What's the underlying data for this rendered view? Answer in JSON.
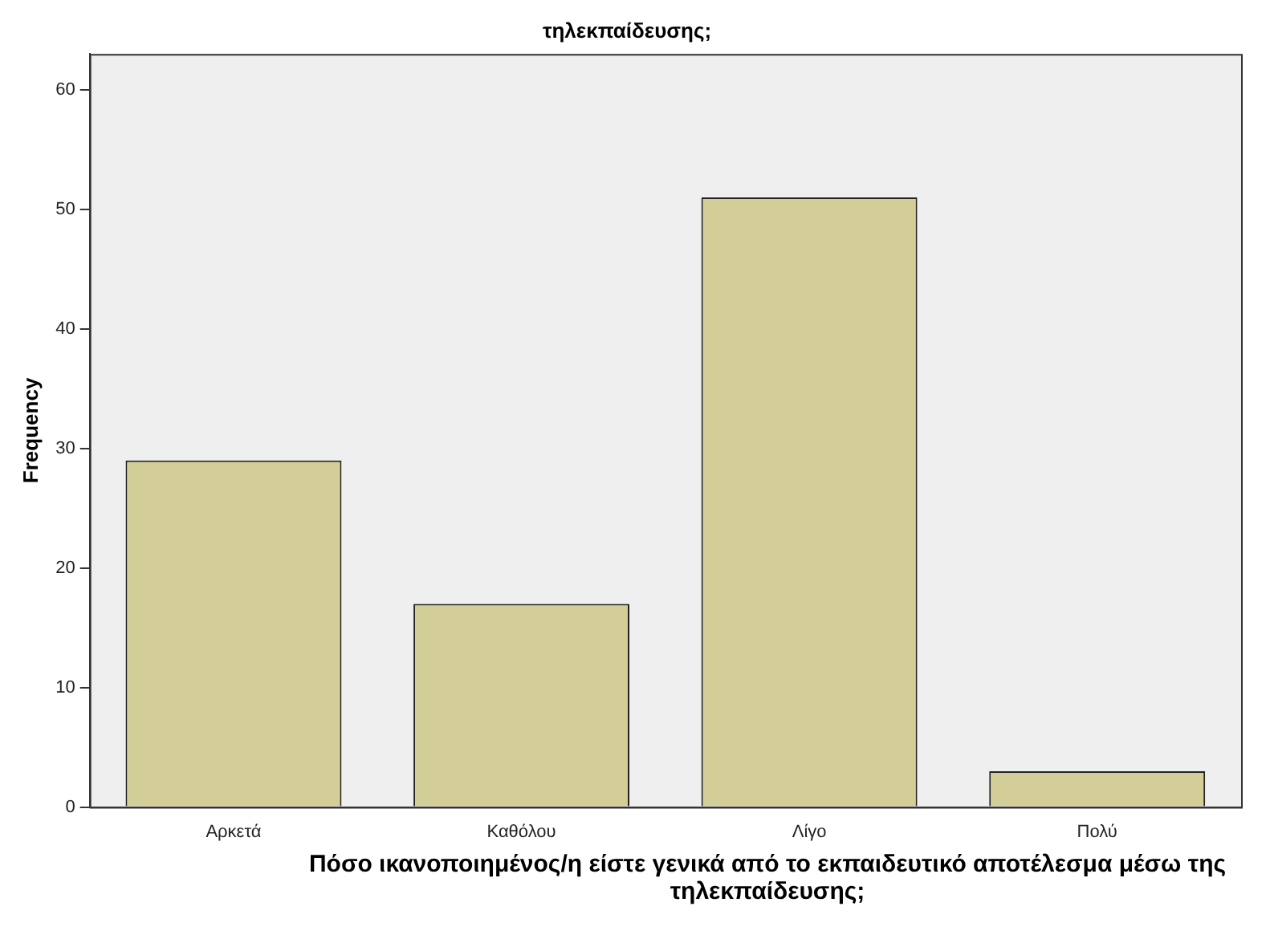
{
  "chart_data": {
    "type": "bar",
    "title": "τηλεκπαίδευσης;",
    "xlabel": "Πόσο ικανοποιημένος/η είστε γενικά από το εκπαιδευτικό αποτέλεσμα μέσω της τηλεκπαίδευσης;",
    "ylabel": "Frequency",
    "categories": [
      "Αρκετά",
      "Καθόλου",
      "Λίγο",
      "Πολύ"
    ],
    "values": [
      29,
      17,
      51,
      3
    ],
    "color": "#d3ce97",
    "ylim": [
      0,
      63
    ],
    "yticks": [
      0,
      10,
      20,
      30,
      40,
      50,
      60
    ],
    "grid": false,
    "legend": false
  }
}
